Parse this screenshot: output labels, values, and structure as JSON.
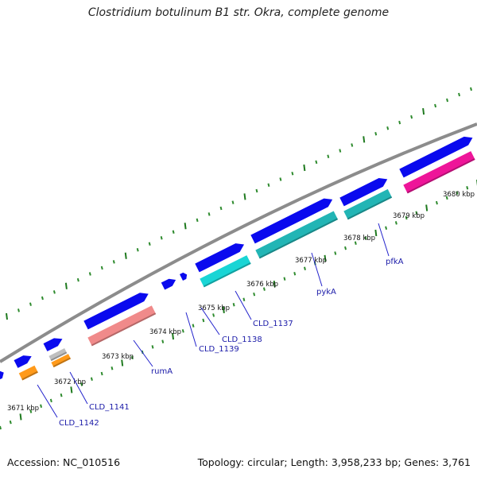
{
  "title": "Clostridium botulinum B1 str. Okra, complete genome",
  "footer": {
    "accession": "Accession: NC_010516",
    "summary": "Topology: circular; Length: 3,958,233 bp; Genes: 3,761"
  },
  "colors": {
    "background": "#ffffff",
    "backbone": "#8c8c8c",
    "cds_forward": "#0a0aee",
    "tick_major": "#1f7a1f",
    "tick_minor": "#2e8b2e",
    "gene_label": "#1a1aa8",
    "leader_line": "#2222cc"
  },
  "scale_labels": [
    "3671 kbp",
    "3672 kbp",
    "3673 kbp",
    "3674 kbp",
    "3675 kbp",
    "3676 kbp",
    "3677 kbp",
    "3678 kbp",
    "3679 kbp",
    "3680 kbp"
  ],
  "gene_labels": [
    "CLD_1142",
    "CLD_1141",
    "rumA",
    "CLD_1139",
    "CLD_1138",
    "CLD_1137",
    "pykA",
    "pfkA"
  ],
  "feature_types": [
    {
      "name": "forward CDS",
      "color": "#0a0aee"
    },
    {
      "name": "orange",
      "color": "#ff9a1a"
    },
    {
      "name": "grey",
      "color": "#bfbfbf"
    },
    {
      "name": "salmon",
      "color": "#f08a8a"
    },
    {
      "name": "cyan",
      "color": "#19d5d5"
    },
    {
      "name": "teal",
      "color": "#22b5b5"
    },
    {
      "name": "magenta",
      "color": "#ee1599"
    }
  ]
}
